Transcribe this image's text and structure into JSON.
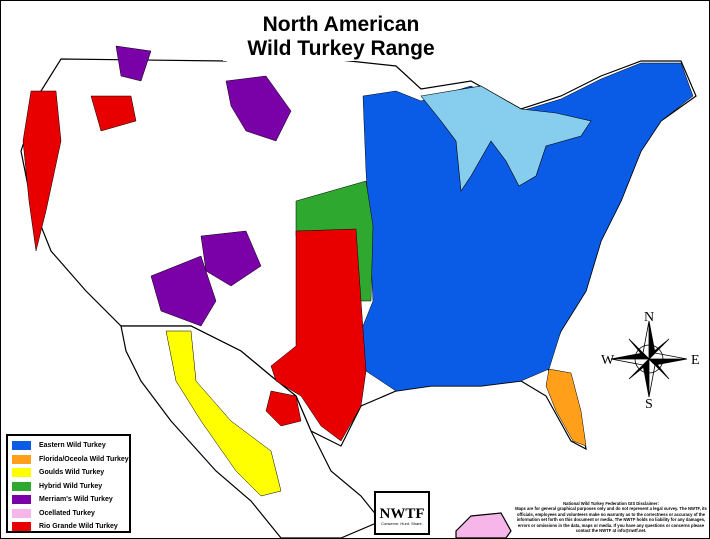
{
  "title": {
    "line1": "North American",
    "line2": "Wild Turkey Range"
  },
  "legend": [
    {
      "label": "Eastern Wild Turkey",
      "color": "#0a5ce6"
    },
    {
      "label": "Florida/Oceola Wild Turkey",
      "color": "#ff9f1a"
    },
    {
      "label": "Goulds Wild Turkey",
      "color": "#ffff00"
    },
    {
      "label": "Hybrid Wild Turkey",
      "color": "#2ea82e"
    },
    {
      "label": "Merriam's Wild Turkey",
      "color": "#7a00a8"
    },
    {
      "label": "Ocellated Turkey",
      "color": "#f7b6ea"
    },
    {
      "label": "Rio Grande Wild Turkey",
      "color": "#e80000"
    }
  ],
  "compass": {
    "n": "N",
    "s": "S",
    "e": "E",
    "w": "W"
  },
  "logo": {
    "text": "NWTF",
    "tagline": "Conserve. Hunt. Share."
  },
  "disclaimer": {
    "heading": "National Wild Turkey Federation GIS Disclaimer:",
    "body": "Maps are for general graphical purposes only and do not represent a legal survey. The NWTF, its officials, employees and volunteers make no warranty as to the correctness or accuracy of the information set forth on this document or media. The NWTF holds no liability for any damages, errors or omissions in the data, maps or media. If you have any questions or concerns please contact the NWTF at info@nwtf.net."
  },
  "water_color": "#87cdee"
}
